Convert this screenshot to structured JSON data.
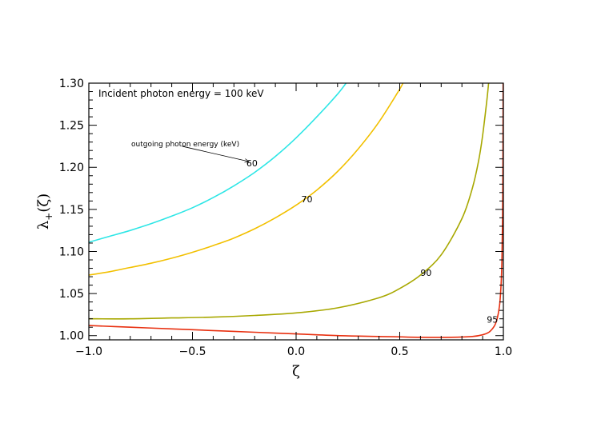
{
  "chart_data": {
    "type": "line",
    "title": "",
    "xlabel": "ζ",
    "ylabel": "λ+(ζ)",
    "ylabel_base": "λ",
    "ylabel_sub": "+",
    "ylabel_arg": "(ζ)",
    "xlim": [
      -1.0,
      1.0
    ],
    "ylim": [
      0.995,
      1.3
    ],
    "x_ticks": [
      -1.0,
      -0.5,
      0.0,
      0.5,
      1.0
    ],
    "x_tick_labels": [
      "−1.0",
      "−0.5",
      "0.0",
      "0.5",
      "1.0"
    ],
    "y_ticks": [
      1.0,
      1.05,
      1.1,
      1.15,
      1.2,
      1.25,
      1.3
    ],
    "y_tick_labels": [
      "1.00",
      "1.05",
      "1.10",
      "1.15",
      "1.20",
      "1.25",
      "1.30"
    ],
    "grid": false,
    "legend": "none",
    "annotations": {
      "incident_text": "Incident photon energy = 100 keV",
      "outgoing_text": "outgoing photon energy (keV)"
    },
    "series": [
      {
        "name": "60",
        "color": "#2ee6e6",
        "x": [
          -1.0,
          -0.9,
          -0.8,
          -0.7,
          -0.6,
          -0.5,
          -0.4,
          -0.3,
          -0.2,
          -0.1,
          0.0,
          0.1,
          0.2,
          0.25
        ],
        "y": [
          1.111,
          1.118,
          1.125,
          1.133,
          1.142,
          1.152,
          1.164,
          1.178,
          1.194,
          1.213,
          1.235,
          1.26,
          1.287,
          1.303
        ]
      },
      {
        "name": "70",
        "color": "#f2c000",
        "x": [
          -1.0,
          -0.9,
          -0.8,
          -0.7,
          -0.6,
          -0.5,
          -0.4,
          -0.3,
          -0.2,
          -0.1,
          0.0,
          0.1,
          0.2,
          0.3,
          0.4,
          0.5,
          0.52
        ],
        "y": [
          1.072,
          1.076,
          1.081,
          1.086,
          1.092,
          1.099,
          1.107,
          1.116,
          1.127,
          1.14,
          1.155,
          1.173,
          1.195,
          1.222,
          1.254,
          1.293,
          1.303
        ]
      },
      {
        "name": "90",
        "color": "#a8a800",
        "x": [
          -1.0,
          -0.8,
          -0.6,
          -0.4,
          -0.2,
          0.0,
          0.2,
          0.4,
          0.5,
          0.6,
          0.7,
          0.8,
          0.85,
          0.88,
          0.9,
          0.92,
          0.93
        ],
        "y": [
          1.02,
          1.02,
          1.021,
          1.022,
          1.024,
          1.027,
          1.033,
          1.045,
          1.056,
          1.072,
          1.096,
          1.139,
          1.175,
          1.207,
          1.238,
          1.279,
          1.303
        ]
      },
      {
        "name": "95",
        "color": "#e83010",
        "x": [
          -1.0,
          -0.8,
          -0.6,
          -0.4,
          -0.2,
          0.0,
          0.2,
          0.4,
          0.6,
          0.75,
          0.85,
          0.9,
          0.93,
          0.95,
          0.96,
          0.97,
          0.98,
          0.985,
          0.99,
          0.993,
          0.996,
          0.998,
          0.999
        ],
        "y": [
          1.012,
          1.01,
          1.008,
          1.006,
          1.004,
          1.002,
          1.0,
          0.999,
          0.998,
          0.998,
          0.999,
          1.001,
          1.004,
          1.009,
          1.013,
          1.02,
          1.033,
          1.045,
          1.066,
          1.09,
          1.14,
          1.22,
          1.303
        ]
      }
    ],
    "curve_labels": [
      {
        "text": "60",
        "x": -0.24,
        "y": 1.205
      },
      {
        "text": "70",
        "x": 0.025,
        "y": 1.162
      },
      {
        "text": "90",
        "x": 0.6,
        "y": 1.075
      },
      {
        "text": "95",
        "x": 0.92,
        "y": 1.019
      }
    ],
    "arrow": {
      "from": [
        -0.55,
        1.225
      ],
      "to": [
        -0.23,
        1.207
      ]
    }
  }
}
